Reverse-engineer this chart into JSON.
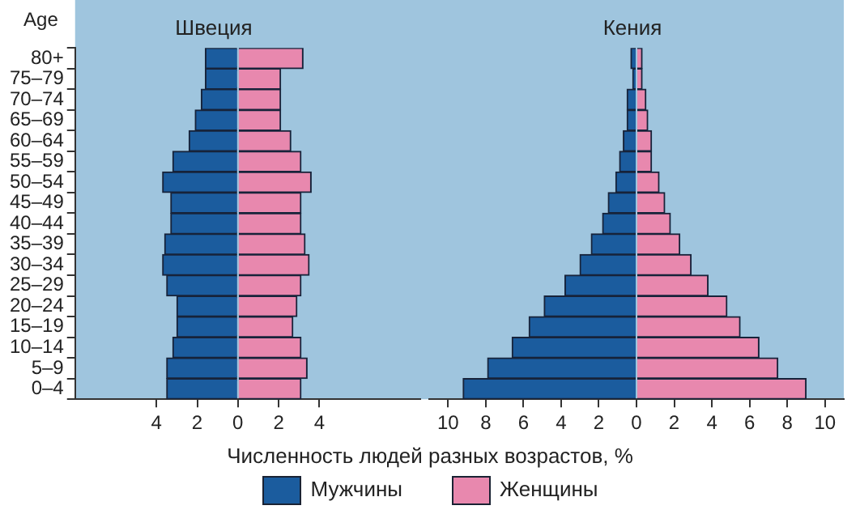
{
  "chart_data": [
    {
      "type": "bar",
      "title": "Швеция",
      "ylabel": "Age",
      "xlabel": "Численность людей разных возрастов, %",
      "orientation": "horizontal",
      "stacked": true,
      "legend": "bottom",
      "categories": [
        "80+",
        "75–79",
        "70–74",
        "65–69",
        "60–64",
        "55–59",
        "50–54",
        "45–49",
        "40–44",
        "35–39",
        "30–34",
        "25–29",
        "20–24",
        "15–19",
        "10–14",
        "5–9",
        "0–4"
      ],
      "series": [
        {
          "name": "Мужчины",
          "color": "#1b5c9e",
          "values": [
            -1.6,
            -1.6,
            -1.8,
            -2.1,
            -2.4,
            -3.2,
            -3.7,
            -3.3,
            -3.3,
            -3.6,
            -3.7,
            -3.5,
            -3.0,
            -3.0,
            -3.2,
            -3.5,
            -3.5
          ]
        },
        {
          "name": "Женщины",
          "color": "#e888ae",
          "values": [
            3.2,
            2.1,
            2.1,
            2.1,
            2.6,
            3.1,
            3.6,
            3.1,
            3.1,
            3.3,
            3.5,
            3.1,
            2.9,
            2.7,
            3.1,
            3.4,
            3.1
          ]
        }
      ],
      "xlim": [
        -8,
        9
      ],
      "xticks": [
        {
          "value": -4,
          "label": "4"
        },
        {
          "value": -2,
          "label": "2"
        },
        0,
        2,
        4
      ]
    },
    {
      "type": "bar",
      "title": "Кения",
      "orientation": "horizontal",
      "stacked": true,
      "tick_labels": "x",
      "categories": [
        null,
        null,
        null,
        null,
        null,
        null,
        null,
        null,
        null,
        null,
        null,
        null,
        null,
        null,
        null,
        null,
        null
      ],
      "series": [
        {
          "color": "#1b5c9e",
          "values": [
            -0.3,
            -0.2,
            -0.5,
            -0.5,
            -0.7,
            -0.9,
            -1.1,
            -1.5,
            -1.8,
            -2.4,
            -3.0,
            -3.8,
            -4.9,
            -5.7,
            -6.6,
            -7.9,
            -9.2
          ]
        },
        {
          "color": "#e888ae",
          "values": [
            0.3,
            0.3,
            0.5,
            0.6,
            0.8,
            0.8,
            1.2,
            1.5,
            1.8,
            2.3,
            2.9,
            3.8,
            4.8,
            5.5,
            6.5,
            7.5,
            9.0
          ]
        }
      ],
      "xlim": [
        -11,
        11
      ],
      "xticks": [
        {
          "value": -10,
          "label": "10"
        },
        {
          "value": -8,
          "label": "8"
        },
        {
          "value": -6,
          "label": "6"
        },
        {
          "value": -4,
          "label": "4"
        },
        {
          "value": -2,
          "label": "2"
        },
        0,
        2,
        4,
        6,
        8,
        10
      ]
    }
  ]
}
